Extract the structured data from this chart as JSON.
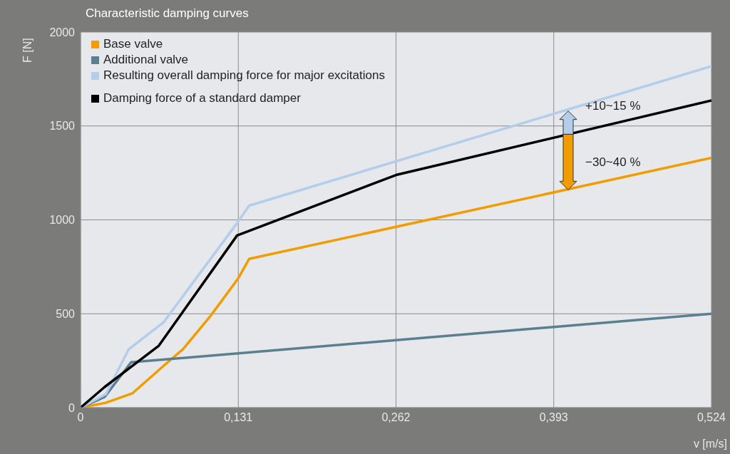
{
  "chart_data": {
    "type": "line",
    "title": "Characteristic damping curves",
    "xlabel": "v [m/s]",
    "ylabel": "F [N]",
    "xlim": [
      0,
      0.524
    ],
    "xticks": [
      0,
      {
        "value": 0.131,
        "label": "0,131"
      },
      {
        "value": 0.262,
        "label": "0,262"
      },
      {
        "value": 0.393,
        "label": "0,393"
      },
      {
        "value": 0.524,
        "label": "0,524"
      }
    ],
    "ylim": [
      0,
      2000
    ],
    "yticks": [
      0,
      500,
      1000,
      1500,
      2000
    ],
    "grid": true,
    "legend": "top left",
    "marker": "none",
    "line_style": "solid",
    "series": [
      {
        "name": "Base valve",
        "color": "#f39c00",
        "x": [
          0,
          0.021,
          0.043,
          0.069,
          0.085,
          0.108,
          0.131,
          0.14,
          0.524
        ],
        "values": [
          0,
          26,
          76,
          223,
          311,
          489,
          689,
          792,
          1330
        ]
      },
      {
        "name": "Additional valve",
        "color": "#5a7f90",
        "x": [
          0,
          0.02,
          0.042,
          0.524
        ],
        "values": [
          0,
          57,
          242,
          500
        ]
      },
      {
        "name": "Resulting overall damping force for major excitations",
        "color": "#b3cdeb",
        "x": [
          0,
          0.021,
          0.04,
          0.069,
          0.131,
          0.14,
          0.524
        ],
        "values": [
          0,
          72,
          311,
          455,
          992,
          1076,
          1818
        ]
      },
      {
        "name": "Damping force of a standard damper",
        "color": "#000000",
        "x": [
          0,
          0.02,
          0.065,
          0.13,
          0.262,
          0.524
        ],
        "values": [
          0,
          110,
          330,
          917,
          1239,
          1636
        ]
      }
    ],
    "annotations": [
      {
        "text": "+10~15 %",
        "x": 0.405,
        "y": 1580
      },
      {
        "text": "−30~40 %",
        "x": 0.405,
        "y": 1160
      }
    ]
  }
}
